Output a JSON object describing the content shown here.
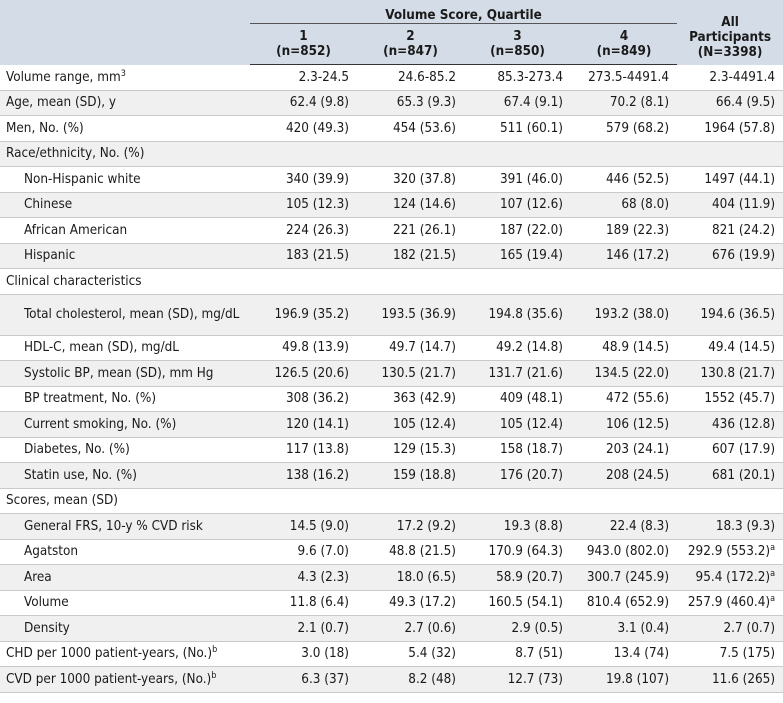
{
  "header": {
    "group_label": "Volume Score, Quartile",
    "columns": [
      {
        "line1": "1",
        "line2": "(n=852)"
      },
      {
        "line1": "2",
        "line2": "(n=847)"
      },
      {
        "line1": "3",
        "line2": "(n=850)"
      },
      {
        "line1": "4",
        "line2": "(n=849)"
      }
    ],
    "all": {
      "line1": "All",
      "line2": "Participants",
      "line3": "(N=3398)"
    }
  },
  "rows": [
    {
      "label": "Volume range, mm",
      "sup": "3",
      "indent": false,
      "section": false,
      "shade": false,
      "tall": false,
      "values": [
        "2.3-24.5",
        "24.6-85.2",
        "85.3-273.4",
        "273.5-4491.4",
        "2.3-4491.4"
      ],
      "sups": [
        "",
        "",
        "",
        "",
        ""
      ]
    },
    {
      "label": "Age, mean (SD), y",
      "sup": "",
      "indent": false,
      "section": false,
      "shade": true,
      "tall": false,
      "values": [
        "62.4 (9.8)",
        "65.3 (9.3)",
        "67.4 (9.1)",
        "70.2 (8.1)",
        "66.4 (9.5)"
      ],
      "sups": [
        "",
        "",
        "",
        "",
        ""
      ]
    },
    {
      "label": "Men, No. (%)",
      "sup": "",
      "indent": false,
      "section": false,
      "shade": false,
      "tall": false,
      "values": [
        "420 (49.3)",
        "454 (53.6)",
        "511 (60.1)",
        "579 (68.2)",
        "1964 (57.8)"
      ],
      "sups": [
        "",
        "",
        "",
        "",
        ""
      ]
    },
    {
      "label": "Race/ethnicity, No. (%)",
      "sup": "",
      "indent": false,
      "section": true,
      "shade": true,
      "tall": false,
      "values": [
        "",
        "",
        "",
        "",
        ""
      ],
      "sups": [
        "",
        "",
        "",
        "",
        ""
      ]
    },
    {
      "label": "Non-Hispanic white",
      "sup": "",
      "indent": true,
      "section": false,
      "shade": false,
      "tall": false,
      "values": [
        "340 (39.9)",
        "320 (37.8)",
        "391 (46.0)",
        "446 (52.5)",
        "1497 (44.1)"
      ],
      "sups": [
        "",
        "",
        "",
        "",
        ""
      ]
    },
    {
      "label": "Chinese",
      "sup": "",
      "indent": true,
      "section": false,
      "shade": true,
      "tall": false,
      "values": [
        "105 (12.3)",
        "124 (14.6)",
        "107 (12.6)",
        "68 (8.0)",
        "404 (11.9)"
      ],
      "sups": [
        "",
        "",
        "",
        "",
        ""
      ]
    },
    {
      "label": "African American",
      "sup": "",
      "indent": true,
      "section": false,
      "shade": false,
      "tall": false,
      "values": [
        "224 (26.3)",
        "221 (26.1)",
        "187 (22.0)",
        "189 (22.3)",
        "821 (24.2)"
      ],
      "sups": [
        "",
        "",
        "",
        "",
        ""
      ]
    },
    {
      "label": "Hispanic",
      "sup": "",
      "indent": true,
      "section": false,
      "shade": true,
      "tall": false,
      "values": [
        "183 (21.5)",
        "182 (21.5)",
        "165 (19.4)",
        "146 (17.2)",
        "676 (19.9)"
      ],
      "sups": [
        "",
        "",
        "",
        "",
        ""
      ]
    },
    {
      "label": "Clinical characteristics",
      "sup": "",
      "indent": false,
      "section": true,
      "shade": false,
      "tall": false,
      "values": [
        "",
        "",
        "",
        "",
        ""
      ],
      "sups": [
        "",
        "",
        "",
        "",
        ""
      ]
    },
    {
      "label": "Total cholesterol, mean (SD), mg/dL",
      "sup": "",
      "indent": true,
      "section": false,
      "shade": true,
      "tall": true,
      "values": [
        "196.9 (35.2)",
        "193.5 (36.9)",
        "194.8 (35.6)",
        "193.2 (38.0)",
        "194.6 (36.5)"
      ],
      "sups": [
        "",
        "",
        "",
        "",
        ""
      ]
    },
    {
      "label": "HDL-C, mean (SD), mg/dL",
      "sup": "",
      "indent": true,
      "section": false,
      "shade": false,
      "tall": false,
      "values": [
        "49.8 (13.9)",
        "49.7 (14.7)",
        "49.2 (14.8)",
        "48.9 (14.5)",
        "49.4 (14.5)"
      ],
      "sups": [
        "",
        "",
        "",
        "",
        ""
      ]
    },
    {
      "label": "Systolic BP, mean (SD), mm Hg",
      "sup": "",
      "indent": true,
      "section": false,
      "shade": true,
      "tall": false,
      "values": [
        "126.5 (20.6)",
        "130.5 (21.7)",
        "131.7 (21.6)",
        "134.5 (22.0)",
        "130.8 (21.7)"
      ],
      "sups": [
        "",
        "",
        "",
        "",
        ""
      ]
    },
    {
      "label": "BP treatment, No. (%)",
      "sup": "",
      "indent": true,
      "section": false,
      "shade": false,
      "tall": false,
      "values": [
        "308 (36.2)",
        "363 (42.9)",
        "409 (48.1)",
        "472 (55.6)",
        "1552 (45.7)"
      ],
      "sups": [
        "",
        "",
        "",
        "",
        ""
      ]
    },
    {
      "label": "Current smoking, No. (%)",
      "sup": "",
      "indent": true,
      "section": false,
      "shade": true,
      "tall": false,
      "values": [
        "120 (14.1)",
        "105 (12.4)",
        "105 (12.4)",
        "106 (12.5)",
        "436 (12.8)"
      ],
      "sups": [
        "",
        "",
        "",
        "",
        ""
      ]
    },
    {
      "label": "Diabetes, No. (%)",
      "sup": "",
      "indent": true,
      "section": false,
      "shade": false,
      "tall": false,
      "values": [
        "117 (13.8)",
        "129 (15.3)",
        "158 (18.7)",
        "203 (24.1)",
        "607 (17.9)"
      ],
      "sups": [
        "",
        "",
        "",
        "",
        ""
      ]
    },
    {
      "label": "Statin use, No. (%)",
      "sup": "",
      "indent": true,
      "section": false,
      "shade": true,
      "tall": false,
      "values": [
        "138 (16.2)",
        "159 (18.8)",
        "176 (20.7)",
        "208 (24.5)",
        "681 (20.1)"
      ],
      "sups": [
        "",
        "",
        "",
        "",
        ""
      ]
    },
    {
      "label": "Scores, mean (SD)",
      "sup": "",
      "indent": false,
      "section": true,
      "shade": false,
      "tall": false,
      "values": [
        "",
        "",
        "",
        "",
        ""
      ],
      "sups": [
        "",
        "",
        "",
        "",
        ""
      ]
    },
    {
      "label": "General FRS, 10-y % CVD risk",
      "sup": "",
      "indent": true,
      "section": false,
      "shade": true,
      "tall": false,
      "values": [
        "14.5 (9.0)",
        "17.2 (9.2)",
        "19.3 (8.8)",
        "22.4 (8.3)",
        "18.3 (9.3)"
      ],
      "sups": [
        "",
        "",
        "",
        "",
        ""
      ]
    },
    {
      "label": "Agatston",
      "sup": "",
      "indent": true,
      "section": false,
      "shade": false,
      "tall": false,
      "values": [
        "9.6 (7.0)",
        "48.8 (21.5)",
        "170.9 (64.3)",
        "943.0 (802.0)",
        "292.9 (553.2)"
      ],
      "sups": [
        "",
        "",
        "",
        "",
        "a"
      ]
    },
    {
      "label": "Area",
      "sup": "",
      "indent": true,
      "section": false,
      "shade": true,
      "tall": false,
      "values": [
        "4.3 (2.3)",
        "18.0 (6.5)",
        "58.9 (20.7)",
        "300.7 (245.9)",
        "95.4 (172.2)"
      ],
      "sups": [
        "",
        "",
        "",
        "",
        "a"
      ]
    },
    {
      "label": "Volume",
      "sup": "",
      "indent": true,
      "section": false,
      "shade": false,
      "tall": false,
      "values": [
        "11.8 (6.4)",
        "49.3 (17.2)",
        "160.5 (54.1)",
        "810.4 (652.9)",
        "257.9 (460.4)"
      ],
      "sups": [
        "",
        "",
        "",
        "",
        "a"
      ]
    },
    {
      "label": "Density",
      "sup": "",
      "indent": true,
      "section": false,
      "shade": true,
      "tall": false,
      "values": [
        "2.1 (0.7)",
        "2.7 (0.6)",
        "2.9 (0.5)",
        "3.1 (0.4)",
        "2.7 (0.7)"
      ],
      "sups": [
        "",
        "",
        "",
        "",
        ""
      ]
    },
    {
      "label": "CHD per 1000 patient-years, (No.)",
      "sup": "b",
      "indent": false,
      "section": false,
      "shade": false,
      "tall": false,
      "values": [
        "3.0 (18)",
        "5.4 (32)",
        "8.7 (51)",
        "13.4 (74)",
        "7.5 (175)"
      ],
      "sups": [
        "",
        "",
        "",
        "",
        ""
      ]
    },
    {
      "label": "CVD per 1000 patient-years, (No.)",
      "sup": "b",
      "indent": false,
      "section": false,
      "shade": true,
      "tall": false,
      "values": [
        "6.3 (37)",
        "8.2 (48)",
        "12.7 (73)",
        "19.8 (107)",
        "11.6 (265)"
      ],
      "sups": [
        "",
        "",
        "",
        "",
        ""
      ]
    }
  ]
}
